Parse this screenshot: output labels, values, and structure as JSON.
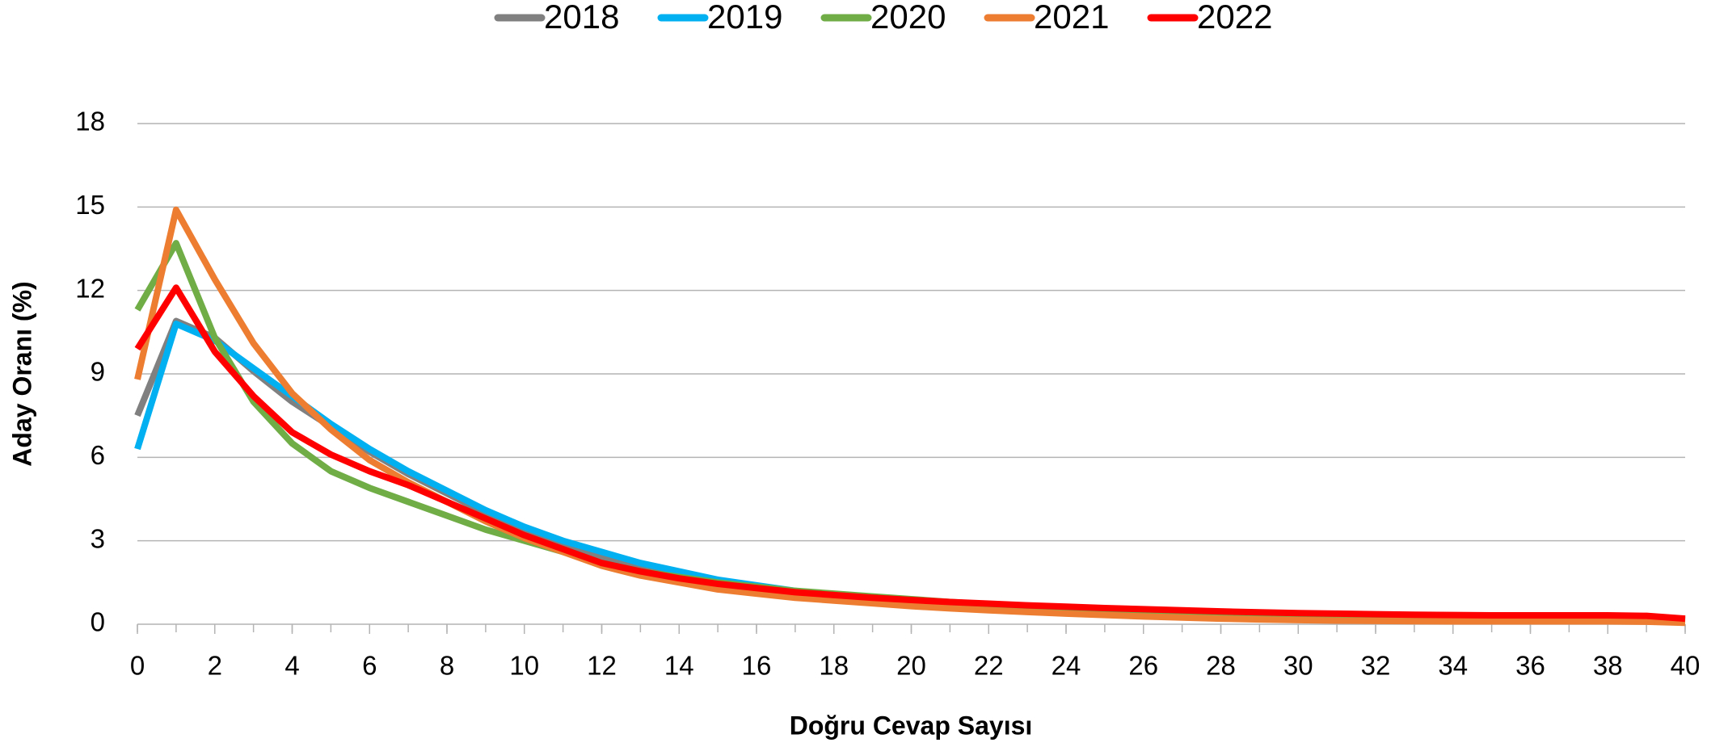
{
  "chart_data": {
    "type": "line",
    "xlabel": "Doğru Cevap Sayısı",
    "ylabel": "Aday Oranı (%)",
    "x": [
      0,
      1,
      2,
      3,
      4,
      5,
      6,
      7,
      8,
      9,
      10,
      11,
      12,
      13,
      14,
      15,
      16,
      17,
      18,
      19,
      20,
      21,
      22,
      23,
      24,
      25,
      26,
      27,
      28,
      29,
      30,
      31,
      32,
      33,
      34,
      35,
      36,
      37,
      38,
      39,
      40
    ],
    "xlim": [
      0,
      40
    ],
    "xticks": [
      0,
      2,
      4,
      6,
      8,
      10,
      12,
      14,
      16,
      18,
      20,
      22,
      24,
      26,
      28,
      30,
      32,
      34,
      36,
      38,
      40
    ],
    "ylim": [
      0,
      18
    ],
    "yticks": [
      0,
      3,
      6,
      9,
      12,
      15,
      18
    ],
    "grid": true,
    "legend": "top",
    "series": [
      {
        "name": "2018",
        "color": "#808080",
        "values": [
          7.5,
          10.9,
          10.3,
          9.1,
          8.0,
          7.1,
          6.2,
          5.4,
          4.7,
          4.0,
          3.4,
          2.9,
          2.4,
          2.0,
          1.7,
          1.5,
          1.3,
          1.15,
          1.0,
          0.9,
          0.8,
          0.7,
          0.65,
          0.6,
          0.55,
          0.5,
          0.45,
          0.4,
          0.38,
          0.35,
          0.32,
          0.3,
          0.28,
          0.26,
          0.25,
          0.24,
          0.23,
          0.22,
          0.21,
          0.2,
          0.15
        ]
      },
      {
        "name": "2019",
        "color": "#00b0f0",
        "values": [
          6.3,
          10.8,
          10.2,
          9.2,
          8.2,
          7.2,
          6.3,
          5.5,
          4.8,
          4.1,
          3.5,
          3.0,
          2.6,
          2.2,
          1.9,
          1.6,
          1.4,
          1.2,
          1.05,
          0.95,
          0.85,
          0.75,
          0.68,
          0.6,
          0.55,
          0.5,
          0.45,
          0.4,
          0.37,
          0.34,
          0.31,
          0.29,
          0.27,
          0.25,
          0.24,
          0.23,
          0.22,
          0.21,
          0.2,
          0.19,
          0.15
        ]
      },
      {
        "name": "2020",
        "color": "#70ad47",
        "values": [
          11.3,
          13.7,
          10.3,
          8.0,
          6.5,
          5.5,
          4.9,
          4.4,
          3.9,
          3.4,
          3.0,
          2.6,
          2.2,
          1.9,
          1.7,
          1.5,
          1.35,
          1.2,
          1.1,
          1.0,
          0.9,
          0.8,
          0.72,
          0.65,
          0.58,
          0.52,
          0.47,
          0.42,
          0.38,
          0.34,
          0.31,
          0.28,
          0.26,
          0.24,
          0.22,
          0.21,
          0.2,
          0.19,
          0.18,
          0.17,
          0.12
        ]
      },
      {
        "name": "2021",
        "color": "#ed7d31",
        "values": [
          8.8,
          14.9,
          12.4,
          10.1,
          8.3,
          7.0,
          5.9,
          5.1,
          4.4,
          3.7,
          3.1,
          2.6,
          2.1,
          1.75,
          1.5,
          1.25,
          1.1,
          0.95,
          0.85,
          0.75,
          0.65,
          0.57,
          0.5,
          0.44,
          0.38,
          0.33,
          0.28,
          0.24,
          0.2,
          0.17,
          0.15,
          0.13,
          0.12,
          0.11,
          0.1,
          0.1,
          0.1,
          0.1,
          0.1,
          0.09,
          0.05
        ]
      },
      {
        "name": "2022",
        "color": "#ff0000",
        "values": [
          9.9,
          12.1,
          9.8,
          8.2,
          6.9,
          6.1,
          5.5,
          5.0,
          4.4,
          3.8,
          3.2,
          2.7,
          2.2,
          1.9,
          1.65,
          1.45,
          1.3,
          1.15,
          1.05,
          0.95,
          0.87,
          0.8,
          0.74,
          0.68,
          0.63,
          0.58,
          0.54,
          0.5,
          0.46,
          0.43,
          0.4,
          0.38,
          0.36,
          0.34,
          0.33,
          0.32,
          0.32,
          0.32,
          0.32,
          0.3,
          0.2
        ]
      }
    ]
  }
}
